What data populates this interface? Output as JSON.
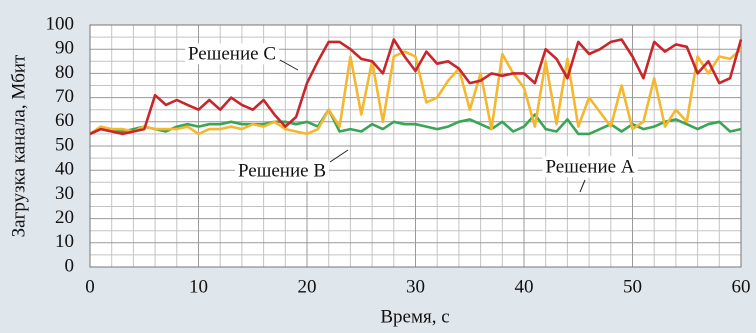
{
  "chart_data": {
    "type": "line",
    "xlabel": "Время, с",
    "ylabel": "Загрузка канала, Мбит",
    "x": [
      0,
      1,
      2,
      3,
      4,
      5,
      6,
      7,
      8,
      9,
      10,
      11,
      12,
      13,
      14,
      15,
      16,
      17,
      18,
      19,
      20,
      21,
      22,
      23,
      24,
      25,
      26,
      27,
      28,
      29,
      30,
      31,
      32,
      33,
      34,
      35,
      36,
      37,
      38,
      39,
      40,
      41,
      42,
      43,
      44,
      45,
      46,
      47,
      48,
      49,
      50,
      51,
      52,
      53,
      54,
      55,
      56,
      57,
      58,
      59,
      60
    ],
    "series": [
      {
        "name": "Решение A",
        "color": "#3aa655",
        "values": [
          55,
          57,
          57,
          56,
          57,
          58,
          57,
          56,
          58,
          59,
          58,
          59,
          59,
          60,
          59,
          59,
          59,
          60,
          60,
          59,
          60,
          58,
          65,
          56,
          57,
          56,
          59,
          57,
          60,
          59,
          59,
          58,
          57,
          58,
          60,
          61,
          59,
          57,
          60,
          56,
          58,
          63,
          57,
          56,
          61,
          55,
          55,
          57,
          59,
          56,
          59,
          57,
          58,
          60,
          61,
          59,
          57,
          59,
          60,
          56,
          57
        ]
      },
      {
        "name": "Решение B",
        "color": "#f4b72e",
        "values": [
          55,
          58,
          57,
          57,
          56,
          58,
          57,
          57,
          57,
          58,
          55,
          57,
          57,
          58,
          57,
          59,
          58,
          60,
          57,
          56,
          55,
          57,
          65,
          58,
          87,
          63,
          85,
          60,
          87,
          89,
          87,
          68,
          70,
          77,
          82,
          65,
          80,
          57,
          88,
          80,
          74,
          58,
          85,
          59,
          86,
          58,
          70,
          64,
          58,
          75,
          57,
          60,
          78,
          58,
          65,
          60,
          87,
          80,
          87,
          86,
          90
        ]
      },
      {
        "name": "Решение C",
        "color": "#c8262b",
        "values": [
          55,
          57,
          56,
          55,
          56,
          57,
          71,
          67,
          69,
          67,
          65,
          69,
          65,
          70,
          67,
          65,
          69,
          63,
          58,
          62,
          76,
          85,
          93,
          93,
          90,
          86,
          85,
          80,
          94,
          87,
          81,
          89,
          84,
          85,
          82,
          76,
          77,
          80,
          79,
          80,
          80,
          76,
          90,
          86,
          78,
          93,
          88,
          90,
          93,
          94,
          87,
          78,
          93,
          89,
          92,
          91,
          80,
          85,
          76,
          78,
          94
        ]
      }
    ],
    "xlim": [
      0,
      60
    ],
    "xticks": [
      0,
      10,
      20,
      30,
      40,
      50,
      60
    ],
    "ylim": [
      0,
      100
    ],
    "yticks": [
      0,
      10,
      20,
      30,
      40,
      50,
      60,
      70,
      80,
      90,
      100
    ],
    "grid": true
  }
}
